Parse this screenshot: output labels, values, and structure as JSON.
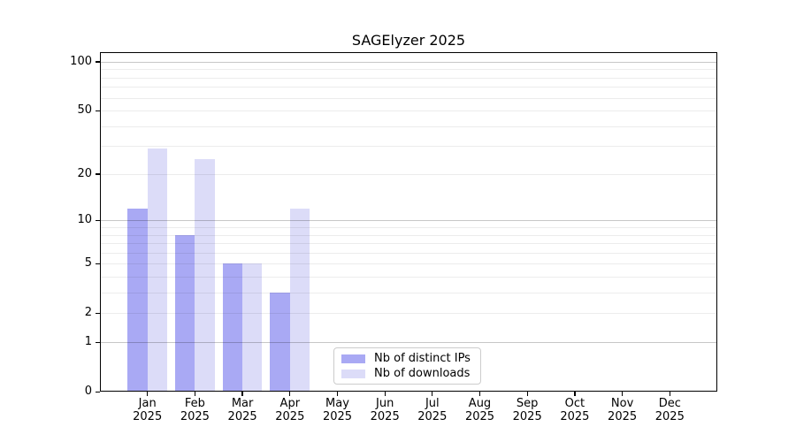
{
  "title": "SAGElyzer 2025",
  "chart_data": {
    "type": "bar",
    "title": "SAGElyzer 2025",
    "year": "2025",
    "categories": [
      "Jan",
      "Feb",
      "Mar",
      "Apr",
      "May",
      "Jun",
      "Jul",
      "Aug",
      "Sep",
      "Oct",
      "Nov",
      "Dec"
    ],
    "series": [
      {
        "name": "Nb of distinct IPs",
        "color": "#a9a9f4",
        "values": [
          12,
          8,
          5,
          3,
          0,
          0,
          0,
          0,
          0,
          0,
          0,
          0
        ]
      },
      {
        "name": "Nb of downloads",
        "color": "#dcdcf8",
        "values": [
          29,
          25,
          5,
          12,
          0,
          0,
          0,
          0,
          0,
          0,
          0,
          0
        ]
      }
    ],
    "y_axis": {
      "scale": "log(1+v)",
      "tick_values": [
        0,
        1,
        2,
        5,
        10,
        20,
        50,
        100
      ],
      "tick_labels": [
        "0",
        "1",
        "2",
        "5",
        "10",
        "20",
        "50",
        "100"
      ],
      "major_gridlines": [
        1,
        10,
        100
      ],
      "minor_gridlines": [
        2,
        3,
        4,
        5,
        6,
        7,
        8,
        9,
        20,
        30,
        40,
        50,
        60,
        70,
        80,
        90
      ],
      "ylim": [
        0,
        113
      ]
    },
    "legend": {
      "position": "bottom-center",
      "entries": [
        "Nb of distinct IPs",
        "Nb of downloads"
      ]
    },
    "grid": "on"
  }
}
